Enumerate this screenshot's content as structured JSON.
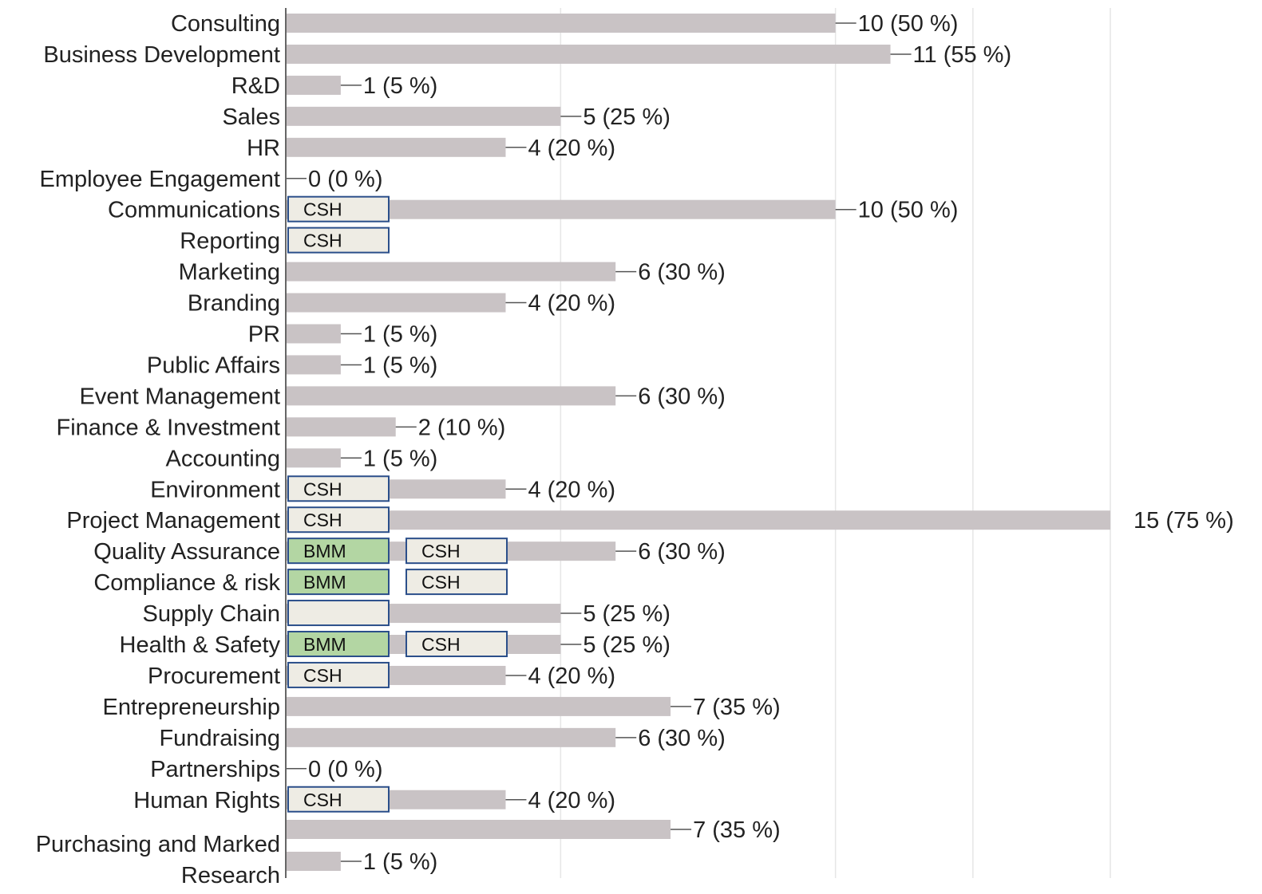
{
  "chart_data": {
    "type": "bar",
    "orientation": "horizontal",
    "title": "",
    "xlabel": "",
    "ylabel": "",
    "xlim": [
      0,
      15
    ],
    "grid": true,
    "categories": [
      "Consulting",
      "Business Development",
      "R&D",
      "Sales",
      "HR",
      "Employee Engagement",
      "Communications",
      "Reporting",
      "Marketing",
      "Branding",
      "PR",
      "Public Affairs",
      "Event Management",
      "Finance & Investment",
      "Accounting",
      "Environment",
      "Project Management",
      "Quality Assurance",
      "Compliance & risk",
      "Supply Chain",
      "Health & Safety",
      "Procurement",
      "Entrepreneurship",
      "Fundraising",
      "Partnerships",
      "Human Rights",
      "",
      "Purchasing and Marked Research"
    ],
    "values": [
      10,
      11,
      1,
      5,
      4,
      0,
      10,
      null,
      6,
      4,
      1,
      1,
      6,
      2,
      1,
      4,
      15,
      6,
      null,
      5,
      5,
      4,
      7,
      6,
      0,
      4,
      7,
      1
    ],
    "value_labels": [
      "10 (50 %)",
      "11 (55 %)",
      "1 (5 %)",
      "5 (25 %)",
      "4 (20 %)",
      "0 (0 %)",
      "10 (50 %)",
      "",
      "6 (30 %)",
      "4 (20 %)",
      "1 (5 %)",
      "1 (5 %)",
      "6 (30 %)",
      "2 (10 %)",
      "1 (5 %)",
      "4 (20 %)",
      "15 (75 %)",
      "6 (30 %)",
      "",
      "5 (25 %)",
      "5 (25 %)",
      "4 (20 %)",
      "7 (35 %)",
      "6 (30 %)",
      "0 (0 %)",
      "4 (20 %)",
      "7 (35 %)",
      "1 (5 %)"
    ],
    "annotations": [
      {
        "row": 6,
        "tags": [
          {
            "text": "CSH",
            "style": "light"
          }
        ]
      },
      {
        "row": 7,
        "tags": [
          {
            "text": "CSH",
            "style": "light"
          }
        ]
      },
      {
        "row": 15,
        "tags": [
          {
            "text": "CSH",
            "style": "light"
          }
        ]
      },
      {
        "row": 16,
        "tags": [
          {
            "text": "CSH",
            "style": "light"
          }
        ]
      },
      {
        "row": 17,
        "tags": [
          {
            "text": "BMM",
            "style": "green"
          },
          {
            "text": "CSH",
            "style": "light"
          }
        ]
      },
      {
        "row": 18,
        "tags": [
          {
            "text": "BMM",
            "style": "green"
          },
          {
            "text": "CSH",
            "style": "light"
          }
        ]
      },
      {
        "row": 19,
        "tags": [
          {
            "text": "",
            "style": "light"
          }
        ]
      },
      {
        "row": 20,
        "tags": [
          {
            "text": "BMM",
            "style": "green"
          },
          {
            "text": "CSH",
            "style": "light"
          }
        ]
      },
      {
        "row": 21,
        "tags": [
          {
            "text": "CSH",
            "style": "light"
          }
        ]
      },
      {
        "row": 25,
        "tags": [
          {
            "text": "CSH",
            "style": "light"
          }
        ]
      }
    ],
    "colors": {
      "bar": "#c9c3c5",
      "tag_light_fill": "#eeece4",
      "tag_green_fill": "#b3d6a3",
      "tag_border": "#2b4f8a",
      "grid": "#e6e6e6",
      "axis": "#666666",
      "text": "#222222"
    }
  }
}
